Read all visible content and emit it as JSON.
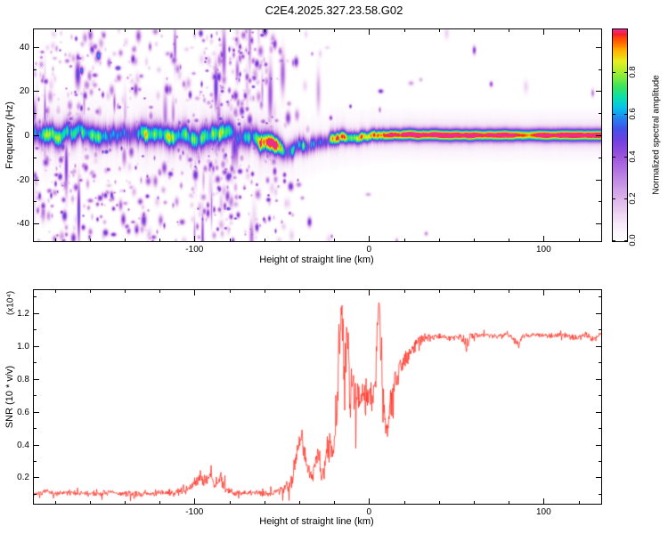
{
  "title": "C2E4.2025.327.23.58.G02",
  "chart_data": [
    {
      "type": "heatmap",
      "name": "spectrogram",
      "xlabel": "Height of straight line (km)",
      "ylabel": "Frequency (Hz)",
      "xlim": [
        -192,
        133
      ],
      "ylim": [
        -48,
        48
      ],
      "xticks": [
        -100,
        0,
        100
      ],
      "xtick_labels": [
        "-100",
        "0",
        "100"
      ],
      "x_minor_ticks": [
        -180,
        -160,
        -140,
        -120,
        -80,
        -60,
        -40,
        -20,
        20,
        40,
        60,
        80,
        120
      ],
      "yticks": [
        -40,
        -20,
        0,
        20,
        40
      ],
      "ytick_labels": [
        "-40",
        "-20",
        "0",
        "20",
        "40"
      ],
      "y_minor_ticks": [
        -30,
        -10,
        10,
        30
      ],
      "colorbar": {
        "label": "Normalized spectral amplitude",
        "lim": [
          0,
          1
        ],
        "ticks": [
          0,
          0.2,
          0.4,
          0.6,
          0.8
        ],
        "tick_labels": [
          "0.0",
          "0.2",
          "0.4",
          "0.6",
          "0.8"
        ]
      },
      "colormap": [
        [
          0.0,
          "#ffffff"
        ],
        [
          0.05,
          "#fbf3fc"
        ],
        [
          0.12,
          "#f0d9f4"
        ],
        [
          0.2,
          "#ddb4ea"
        ],
        [
          0.3,
          "#bd85e2"
        ],
        [
          0.4,
          "#9c55dc"
        ],
        [
          0.47,
          "#7440e0"
        ],
        [
          0.53,
          "#4450e8"
        ],
        [
          0.58,
          "#2383f0"
        ],
        [
          0.63,
          "#06c3ea"
        ],
        [
          0.68,
          "#0ce0ac"
        ],
        [
          0.73,
          "#3ce35e"
        ],
        [
          0.79,
          "#9aec33"
        ],
        [
          0.85,
          "#e9ef21"
        ],
        [
          0.9,
          "#ffb300"
        ],
        [
          0.95,
          "#ff5500"
        ],
        [
          0.98,
          "#f3202c"
        ],
        [
          1.0,
          "#ef2b8d"
        ]
      ],
      "signal": {
        "x": [
          -192,
          -170,
          -150,
          -130,
          -110,
          -95,
          -85,
          -75,
          -65,
          -58,
          -52,
          -47,
          -43,
          -40,
          -37,
          -34,
          -31,
          -28,
          -25,
          -22,
          -19,
          -16,
          -13,
          -10,
          -7,
          -4,
          -1,
          2,
          5,
          8,
          11,
          14,
          18,
          25,
          40,
          70,
          100,
          133
        ],
        "center_hz": [
          0.5,
          -0.5,
          0.3,
          -0.4,
          0.2,
          -0.3,
          0.4,
          -0.2,
          -0.5,
          -2.0,
          -4.5,
          -5.5,
          -4.0,
          -2.5,
          -3.5,
          -4.5,
          -3.0,
          -1.5,
          -2.5,
          -1.0,
          -1.8,
          -0.5,
          -1.2,
          -0.3,
          -0.8,
          0.2,
          -0.3,
          0.3,
          0.0,
          0.2,
          0.0,
          0.1,
          0.0,
          0.0,
          0.0,
          0.0,
          0.0,
          0.0
        ],
        "amplitude": [
          0.58,
          0.6,
          0.57,
          0.6,
          0.58,
          0.62,
          0.6,
          0.62,
          0.63,
          0.68,
          0.7,
          0.72,
          0.74,
          0.76,
          0.74,
          0.78,
          0.8,
          0.78,
          0.82,
          0.85,
          0.88,
          0.85,
          0.9,
          0.92,
          0.9,
          0.93,
          0.92,
          0.94,
          0.93,
          0.95,
          0.93,
          0.95,
          0.95,
          0.96,
          0.96,
          0.96,
          0.96,
          0.96
        ],
        "sigma_hz": [
          3.4,
          3.5,
          3.3,
          3.4,
          3.5,
          3.8,
          3.6,
          3.6,
          3.4,
          3.2,
          3.0,
          2.9,
          2.8,
          2.7,
          2.6,
          2.5,
          2.5,
          2.4,
          2.3,
          2.3,
          2.2,
          2.1,
          2.1,
          2.0,
          2.0,
          2.0,
          1.9,
          1.9,
          1.9,
          1.9,
          1.8,
          1.8,
          1.8,
          1.8,
          1.8,
          1.8,
          1.8,
          1.8
        ],
        "amp_var": [
          0.2,
          0.22,
          0.2,
          0.22,
          0.2,
          0.22,
          0.22,
          0.22,
          0.24,
          0.25,
          0.25,
          0.25,
          0.25,
          0.25,
          0.25,
          0.25,
          0.25,
          0.24,
          0.22,
          0.2,
          0.18,
          0.16,
          0.15,
          0.14,
          0.13,
          0.12,
          0.11,
          0.1,
          0.1,
          0.09,
          0.08,
          0.07,
          0.06,
          0.05,
          0.04,
          0.04,
          0.04,
          0.04
        ],
        "center_var": [
          1.2,
          1.2,
          1.2,
          1.2,
          1.2,
          1.2,
          1.2,
          1.2,
          1.1,
          1.0,
          1.0,
          0.9,
          0.9,
          0.9,
          0.9,
          0.8,
          0.8,
          0.8,
          0.7,
          0.7,
          0.6,
          0.6,
          0.5,
          0.5,
          0.4,
          0.4,
          0.35,
          0.3,
          0.3,
          0.25,
          0.2,
          0.2,
          0.18,
          0.15,
          0.12,
          0.1,
          0.1,
          0.1
        ]
      },
      "noise": {
        "x": [
          -192,
          -180,
          -170,
          -160,
          -150,
          -140,
          -130,
          -120,
          -110,
          -100,
          -95,
          -90,
          -85,
          -80,
          -75,
          -70,
          -65,
          -60,
          -55,
          -50,
          -46,
          -42,
          -38,
          -30,
          -20,
          -10,
          0,
          30,
          133
        ],
        "density": [
          0.5,
          0.55,
          0.6,
          0.5,
          0.45,
          0.38,
          0.32,
          0.3,
          0.33,
          0.42,
          0.55,
          0.8,
          0.85,
          0.82,
          0.78,
          0.65,
          0.7,
          0.62,
          0.5,
          0.35,
          0.22,
          0.1,
          0.05,
          0.03,
          0.02,
          0.015,
          0.01,
          0.005,
          0.004
        ]
      }
    },
    {
      "type": "line",
      "name": "snr",
      "xlabel": "Height of straight line (km)",
      "ylabel": "SNR (10 * v/v)",
      "ylabel_scale": "(x10⁴)",
      "xlim": [
        -192,
        133
      ],
      "ylim": [
        0.04,
        1.34
      ],
      "xticks": [
        -100,
        0,
        100
      ],
      "xtick_labels": [
        "-100",
        "0",
        "100"
      ],
      "x_minor_ticks": [
        -180,
        -160,
        -140,
        -120,
        -80,
        -60,
        -40,
        -20,
        20,
        40,
        60,
        80,
        120
      ],
      "yticks": [
        0.2,
        0.4,
        0.6,
        0.8,
        1.0,
        1.2
      ],
      "ytick_labels": [
        "0.2",
        "0.4",
        "0.6",
        "0.8",
        "1.0",
        "1.2"
      ],
      "y_minor_ticks": [
        0.1,
        0.3,
        0.5,
        0.7,
        0.9,
        1.1,
        1.3
      ],
      "line_color": "#ff3226",
      "keypoints": [
        [
          -192,
          0.1,
          0.015
        ],
        [
          -185,
          0.11,
          0.02
        ],
        [
          -178,
          0.1,
          0.02
        ],
        [
          -170,
          0.11,
          0.02
        ],
        [
          -162,
          0.1,
          0.02
        ],
        [
          -155,
          0.1,
          0.02
        ],
        [
          -148,
          0.11,
          0.02
        ],
        [
          -140,
          0.1,
          0.02
        ],
        [
          -132,
          0.1,
          0.02
        ],
        [
          -125,
          0.1,
          0.02
        ],
        [
          -118,
          0.11,
          0.02
        ],
        [
          -112,
          0.1,
          0.025
        ],
        [
          -106,
          0.12,
          0.03
        ],
        [
          -101,
          0.15,
          0.04
        ],
        [
          -97,
          0.21,
          0.05
        ],
        [
          -94,
          0.18,
          0.05
        ],
        [
          -91,
          0.22,
          0.05
        ],
        [
          -88,
          0.16,
          0.04
        ],
        [
          -85,
          0.2,
          0.05
        ],
        [
          -82,
          0.13,
          0.03
        ],
        [
          -78,
          0.11,
          0.025
        ],
        [
          -72,
          0.1,
          0.02
        ],
        [
          -66,
          0.11,
          0.02
        ],
        [
          -60,
          0.1,
          0.02
        ],
        [
          -55,
          0.11,
          0.025
        ],
        [
          -50,
          0.12,
          0.03
        ],
        [
          -46,
          0.15,
          0.05
        ],
        [
          -43,
          0.25,
          0.08
        ],
        [
          -41,
          0.4,
          0.1
        ],
        [
          -39,
          0.47,
          0.09
        ],
        [
          -37,
          0.38,
          0.1
        ],
        [
          -35,
          0.25,
          0.07
        ],
        [
          -33,
          0.18,
          0.05
        ],
        [
          -31,
          0.3,
          0.1
        ],
        [
          -29,
          0.34,
          0.1
        ],
        [
          -27,
          0.22,
          0.07
        ],
        [
          -25,
          0.27,
          0.09
        ],
        [
          -23,
          0.42,
          0.13
        ],
        [
          -21,
          0.33,
          0.11
        ],
        [
          -19,
          0.55,
          0.2
        ],
        [
          -17,
          0.95,
          0.28
        ],
        [
          -15.5,
          1.27,
          0.06
        ],
        [
          -14,
          0.8,
          0.25
        ],
        [
          -12.5,
          1.12,
          0.15
        ],
        [
          -11,
          0.65,
          0.2
        ],
        [
          -9.5,
          0.82,
          0.18
        ],
        [
          -8,
          0.58,
          0.14
        ],
        [
          -6.5,
          0.72,
          0.13
        ],
        [
          -5,
          0.66,
          0.11
        ],
        [
          -3.5,
          0.73,
          0.11
        ],
        [
          -2,
          0.64,
          0.1
        ],
        [
          -0.5,
          0.7,
          0.11
        ],
        [
          1,
          0.74,
          0.12
        ],
        [
          2.5,
          0.68,
          0.11
        ],
        [
          4,
          0.85,
          0.18
        ],
        [
          5.5,
          1.3,
          0.05
        ],
        [
          7,
          0.95,
          0.25
        ],
        [
          8.5,
          0.62,
          0.12
        ],
        [
          10,
          0.48,
          0.06
        ],
        [
          11.5,
          0.56,
          0.1
        ],
        [
          13,
          0.68,
          0.14
        ],
        [
          14.5,
          0.8,
          0.13
        ],
        [
          16,
          0.76,
          0.1
        ],
        [
          18,
          0.88,
          0.09
        ],
        [
          20,
          0.93,
          0.08
        ],
        [
          22,
          0.9,
          0.07
        ],
        [
          24,
          0.97,
          0.06
        ],
        [
          27,
          1.01,
          0.05
        ],
        [
          30,
          1.04,
          0.04
        ],
        [
          34,
          1.05,
          0.03
        ],
        [
          40,
          1.06,
          0.022
        ],
        [
          46,
          1.05,
          0.02
        ],
        [
          52,
          1.06,
          0.02
        ],
        [
          56,
          0.99,
          0.035
        ],
        [
          58,
          1.06,
          0.02
        ],
        [
          65,
          1.07,
          0.018
        ],
        [
          72,
          1.06,
          0.02
        ],
        [
          80,
          1.07,
          0.018
        ],
        [
          86,
          1.01,
          0.03
        ],
        [
          88,
          1.06,
          0.02
        ],
        [
          95,
          1.07,
          0.018
        ],
        [
          103,
          1.06,
          0.02
        ],
        [
          110,
          1.07,
          0.018
        ],
        [
          117,
          1.05,
          0.025
        ],
        [
          124,
          1.07,
          0.018
        ],
        [
          129,
          1.04,
          0.03
        ],
        [
          133,
          1.07,
          0.02
        ]
      ]
    }
  ]
}
